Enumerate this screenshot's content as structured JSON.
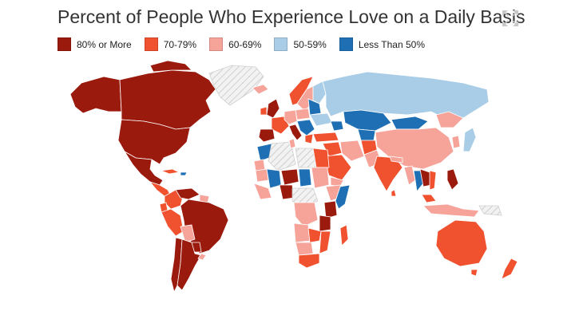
{
  "title": "Percent of People Who Experience Love on a Daily Basis",
  "legend": [
    {
      "label": "80% or More",
      "color": "#9b1a0e"
    },
    {
      "label": "70-79%",
      "color": "#f0512f"
    },
    {
      "label": "60-69%",
      "color": "#f6a39a"
    },
    {
      "label": "50-59%",
      "color": "#a9cde6"
    },
    {
      "label": "Less Than 50%",
      "color": "#1f6fb4"
    }
  ],
  "no_data_pattern": "hatched-gray",
  "icons": {
    "expand": "expand-arrows-icon"
  }
}
